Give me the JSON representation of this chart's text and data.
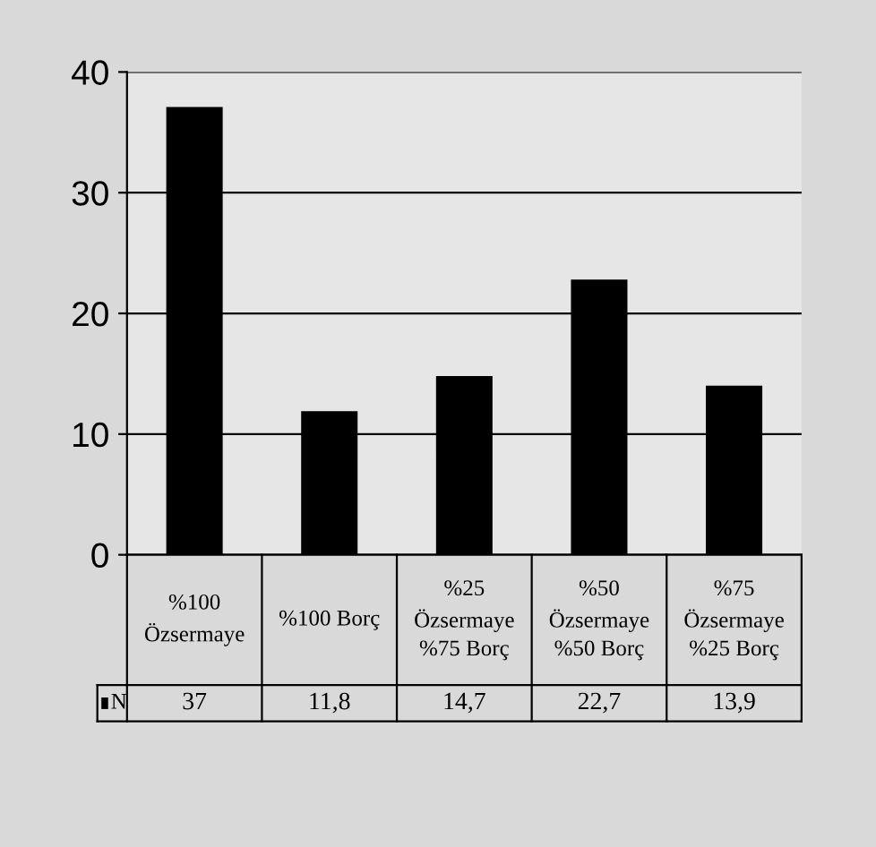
{
  "chart_data": {
    "type": "bar",
    "categories": [
      "%100\nÖzsermaye",
      "%100 Borç",
      "%25\nÖzsermaye\n%75 Borç",
      "%50\nÖzsermaye\n%50 Borç",
      "%75\nÖzsermaye\n%25 Borç"
    ],
    "series": [
      {
        "name": "N",
        "color": "#000000",
        "values": [
          37,
          11.8,
          14.7,
          22.7,
          13.9
        ],
        "value_labels": [
          "37",
          "11,8",
          "14,7",
          "22,7",
          "13,9"
        ]
      }
    ],
    "ylim": [
      0,
      40
    ],
    "yticks": [
      0,
      10,
      20,
      30,
      40
    ],
    "grid": "y",
    "legend": "bottom left"
  }
}
